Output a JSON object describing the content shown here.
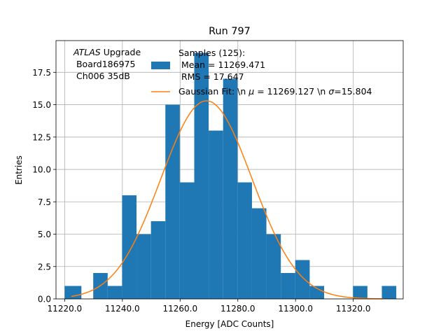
{
  "chart_data": {
    "type": "bar",
    "title": "Run 797",
    "xlabel": "Energy [ADC Counts]",
    "ylabel": "Entries",
    "xlim": [
      11217.0,
      11337.3
    ],
    "ylim": [
      0,
      19.95
    ],
    "xticks": [
      11220,
      11240,
      11260,
      11280,
      11300,
      11320
    ],
    "xtick_labels": [
      "11220.0",
      "11240.0",
      "11260.0",
      "11280.0",
      "11300.0",
      "11320.0"
    ],
    "yticks": [
      0,
      2.5,
      5,
      7.5,
      10,
      12.5,
      15,
      17.5
    ],
    "ytick_labels": [
      "0.0",
      "2.5",
      "5.0",
      "7.5",
      "10.0",
      "12.5",
      "15.0",
      "17.5"
    ],
    "grid": true,
    "bin_edges": [
      11220.0,
      11225.8,
      11229.9,
      11234.9,
      11239.9,
      11244.9,
      11249.9,
      11254.9,
      11259.9,
      11264.9,
      11269.9,
      11274.9,
      11279.9,
      11284.9,
      11289.9,
      11294.9,
      11299.9,
      11304.9,
      11309.9,
      11314.9,
      11319.9,
      11324.9,
      11329.9,
      11334.9
    ],
    "counts": [
      1,
      0,
      2,
      1,
      8,
      5,
      6,
      15,
      9,
      19,
      13,
      17,
      9,
      7,
      5,
      2,
      3,
      1,
      0,
      0,
      1,
      0,
      1
    ],
    "fit": {
      "amplitude": 15.3,
      "mu": 11269.127,
      "sigma": 15.804,
      "x_range": [
        11222.3,
        11330.5
      ]
    },
    "bar_color": "#1f77b4",
    "fit_color": "#ff7f0e",
    "legend": {
      "position": "top-right",
      "samples_lines": [
        "Samples (125):",
        " Mean = 11269.471",
        " RMS = 17.647"
      ],
      "fit_prefix": "Gaussian Fit: \\n ",
      "mu_symbol": "μ",
      "fit_mid": " = 11269.127 \\n ",
      "sigma_symbol": "σ",
      "fit_suffix": "=15.804"
    },
    "annotation": {
      "italic": "ATLAS",
      "rest": " Upgrade",
      "line2": " Board186975",
      "line3": " Ch006 35dB"
    }
  }
}
